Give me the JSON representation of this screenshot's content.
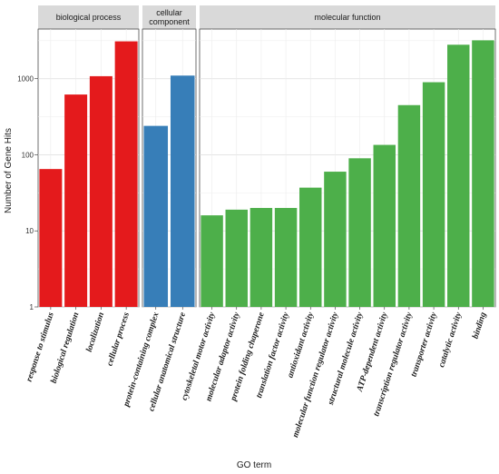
{
  "chart_data": {
    "type": "bar",
    "xlabel": "GO term",
    "ylabel": "Number of Gene Hits",
    "yscale": "log10",
    "ylim": [
      1,
      4500
    ],
    "yticks": [
      1,
      10,
      100,
      1000
    ],
    "ytick_labels": [
      "1",
      "10",
      "100",
      "1000"
    ],
    "grid": true,
    "facets": [
      {
        "label": "biological process",
        "color": "#e41a1c",
        "categories": [
          "response to stimulus",
          "biological regulation",
          "localization",
          "cellular process"
        ],
        "values": [
          65,
          620,
          1080,
          3100
        ]
      },
      {
        "label": "cellular component",
        "label_lines": [
          "cellular",
          "component"
        ],
        "color": "#377eb8",
        "categories": [
          "protein-containing complex",
          "cellular anatomical structure"
        ],
        "values": [
          240,
          1100
        ]
      },
      {
        "label": "molecular function",
        "color": "#4daf4a",
        "categories": [
          "cytoskeletal motor activity",
          "molecular adaptor activity",
          "protein folding chaperone",
          "translation factor activity",
          "antioxidant activity",
          "molecular function regulator activity",
          "structural molecule activity",
          "ATP-dependent activity",
          "transcription regulator activity",
          "transporter activity",
          "catalytic activity",
          "binding"
        ],
        "values": [
          16,
          19,
          20,
          20,
          37,
          60,
          90,
          135,
          450,
          900,
          2800,
          3200
        ]
      }
    ]
  }
}
